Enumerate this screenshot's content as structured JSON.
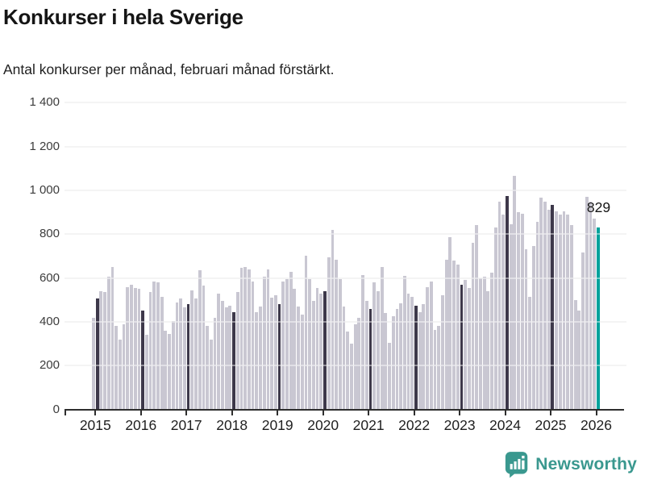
{
  "title": "Konkurser i hela Sverige",
  "subtitle": "Antal konkurser per månad, februari månad förstärkt.",
  "chart_data": {
    "type": "bar",
    "title": "Konkurser i hela Sverige",
    "subtitle": "Antal konkurser per månad, februari månad förstärkt.",
    "ylabel": "",
    "xlabel": "",
    "ylim": [
      0,
      1400
    ],
    "yticks": [
      0,
      200,
      400,
      600,
      800,
      1000,
      1200,
      1400
    ],
    "ytick_labels": [
      "0",
      "200",
      "400",
      "600",
      "800",
      "1 000",
      "1 200",
      "1 400"
    ],
    "xtick_labels": [
      "2015",
      "2016",
      "2017",
      "2018",
      "2019",
      "2020",
      "2021",
      "2022",
      "2023",
      "2024",
      "2025",
      "2026"
    ],
    "grid": true,
    "legend": false,
    "highlight_rule": "february-each-year",
    "annotation": {
      "text": "829",
      "target": "2026-02"
    },
    "colors": {
      "default": "#c9c7d2",
      "february": "#3d384a",
      "highlight": "#00a29c"
    },
    "series": [
      {
        "year": "2015",
        "values": [
          420,
          505,
          540,
          535,
          605,
          650,
          380,
          320,
          390,
          560,
          570,
          555
        ]
      },
      {
        "year": "2016",
        "values": [
          550,
          450,
          340,
          535,
          585,
          580,
          515,
          360,
          345,
          405,
          490,
          505
        ]
      },
      {
        "year": "2017",
        "values": [
          465,
          480,
          545,
          505,
          635,
          565,
          380,
          320,
          420,
          530,
          495,
          465
        ]
      },
      {
        "year": "2018",
        "values": [
          475,
          445,
          535,
          645,
          650,
          640,
          585,
          445,
          470,
          605,
          640,
          510
        ]
      },
      {
        "year": "2019",
        "values": [
          520,
          480,
          585,
          595,
          630,
          550,
          470,
          435,
          700,
          595,
          495,
          555
        ]
      },
      {
        "year": "2020",
        "values": [
          530,
          540,
          695,
          820,
          685,
          595,
          470,
          355,
          300,
          390,
          420,
          615
        ]
      },
      {
        "year": "2021",
        "values": [
          495,
          460,
          580,
          540,
          650,
          440,
          305,
          425,
          460,
          485,
          610,
          530
        ]
      },
      {
        "year": "2022",
        "values": [
          515,
          475,
          445,
          480,
          560,
          585,
          365,
          380,
          520,
          685,
          785,
          680
        ]
      },
      {
        "year": "2023",
        "values": [
          660,
          568,
          590,
          555,
          760,
          840,
          600,
          605,
          540,
          625,
          830,
          950
        ]
      },
      {
        "year": "2024",
        "values": [
          890,
          975,
          845,
          1065,
          900,
          895,
          730,
          515,
          745,
          855,
          965,
          950
        ]
      },
      {
        "year": "2025",
        "values": [
          910,
          935,
          905,
          890,
          905,
          890,
          840,
          500,
          450,
          715,
          970,
          950
        ]
      },
      {
        "year": "2026",
        "values": [
          870,
          829
        ]
      }
    ]
  },
  "branding": {
    "logo_text": "Newsworthy",
    "logo_color": "#3a988f"
  }
}
